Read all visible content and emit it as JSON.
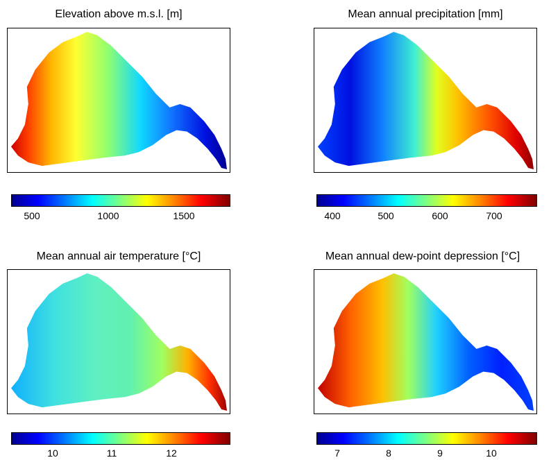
{
  "colormap": [
    "#00008f",
    "#0000ff",
    "#0080ff",
    "#00ffff",
    "#80ff80",
    "#ffff00",
    "#ff8000",
    "#ff0000",
    "#800000"
  ],
  "panels": [
    {
      "title": "Elevation above m.s.l. [m]",
      "range": [
        350,
        1820
      ],
      "ticks": [
        "500",
        "1000",
        "1500"
      ],
      "tick_values": [
        500,
        1000,
        1500
      ]
    },
    {
      "title": "Mean annual precipitation [mm]",
      "range": [
        370,
        780
      ],
      "ticks": [
        "400",
        "500",
        "600",
        "700"
      ],
      "tick_values": [
        400,
        500,
        600,
        700
      ]
    },
    {
      "title": "Mean annual air temperature [°C]",
      "range": [
        9.3,
        13.0
      ],
      "ticks": [
        "10",
        "11",
        "12"
      ],
      "tick_values": [
        10,
        11,
        12
      ]
    },
    {
      "title": "Mean annual dew-point depression [°C]",
      "range": [
        6.6,
        10.9
      ],
      "ticks": [
        "7",
        "8",
        "9",
        "10"
      ],
      "tick_values": [
        7,
        8,
        9,
        10
      ]
    }
  ]
}
